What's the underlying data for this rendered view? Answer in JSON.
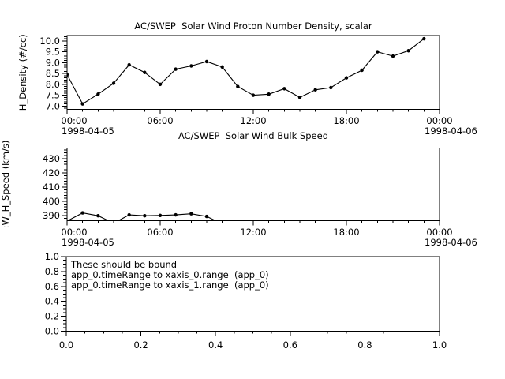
{
  "window": {
    "background": "#ffffff",
    "foreground": "#000000"
  },
  "chart_data": [
    {
      "type": "line",
      "title": "AC/SWEP  Solar Wind Proton Number Density, scalar",
      "ylabel": "H_Density (#/cc)",
      "xlabel": "",
      "x_unit": "hours since 1998-04-05 00:00",
      "xlim": [
        0,
        24
      ],
      "ylim": [
        6.85,
        10.25
      ],
      "x_major_ticks": [
        0,
        6,
        12,
        18,
        24
      ],
      "x_major_labels": [
        "00:00",
        "06:00",
        "12:00",
        "18:00",
        "00:00"
      ],
      "x_minor_step": 1,
      "y_major_ticks": [
        7.0,
        7.5,
        8.0,
        8.5,
        9.0,
        9.5,
        10.0
      ],
      "y_major_labels": [
        "7.0",
        "7.5",
        "8.0",
        "8.5",
        "9.0",
        "9.5",
        "10.0"
      ],
      "y_minor_step": 0.1,
      "date_left": "1998-04-05",
      "date_right": "1998-04-06",
      "grid": false,
      "legend": null,
      "series": [
        {
          "name": "H_Density",
          "marker": "dot",
          "x": [
            0,
            1,
            2,
            3,
            4,
            5,
            6,
            7,
            8,
            9,
            10,
            11,
            12,
            13,
            14,
            15,
            16,
            17,
            18,
            19,
            20,
            21,
            22,
            23
          ],
          "y": [
            8.45,
            7.1,
            7.55,
            8.05,
            8.9,
            8.55,
            8.0,
            8.7,
            8.85,
            9.05,
            8.8,
            7.9,
            7.5,
            7.55,
            7.8,
            7.4,
            7.75,
            7.85,
            8.3,
            8.65,
            9.5,
            9.3,
            9.55,
            10.1
          ]
        }
      ]
    },
    {
      "type": "line",
      "title": "AC/SWEP  Solar Wind Bulk Speed",
      "ylabel": ":W_H_Speed (km/s)",
      "xlabel": "",
      "x_unit": "hours since 1998-04-05 00:00",
      "xlim": [
        0,
        24
      ],
      "ylim": [
        386.3,
        437.4
      ],
      "x_major_ticks": [
        0,
        6,
        12,
        18,
        24
      ],
      "x_major_labels": [
        "00:00",
        "06:00",
        "12:00",
        "18:00",
        "00:00"
      ],
      "x_minor_step": 1,
      "y_major_ticks": [
        390,
        400,
        410,
        420,
        430
      ],
      "y_major_labels": [
        "390",
        "400",
        "410",
        "420",
        "430"
      ],
      "y_minor_step": 2,
      "date_left": "1998-04-05",
      "date_right": "1998-04-06",
      "grid": false,
      "legend": null,
      "series": [
        {
          "name": "W_H_Speed",
          "marker": "dot",
          "x": [
            0,
            1,
            2,
            3,
            4,
            5,
            6,
            7,
            8,
            9,
            10
          ],
          "y": [
            386.0,
            391.8,
            389.8,
            384.5,
            390.4,
            389.8,
            390.0,
            390.4,
            391.2,
            389.3,
            384.0
          ]
        }
      ]
    },
    {
      "type": "line",
      "title": "",
      "ylabel": "",
      "xlabel": "",
      "xlim": [
        0,
        1
      ],
      "ylim": [
        0,
        1
      ],
      "x_major_ticks": [
        0,
        0.2,
        0.4,
        0.6,
        0.8,
        1.0
      ],
      "x_major_labels": [
        "0.0",
        "0.2",
        "0.4",
        "0.6",
        "0.8",
        "1.0"
      ],
      "x_minor_step": 0.05,
      "y_major_ticks": [
        0,
        0.2,
        0.4,
        0.6,
        0.8,
        1.0
      ],
      "y_major_labels": [
        "0.0",
        "0.2",
        "0.4",
        "0.6",
        "0.8",
        "1.0"
      ],
      "y_minor_step": 0.05,
      "grid": false,
      "legend": null,
      "series": [],
      "annotation": [
        "These should be bound",
        "app_0.timeRange to xaxis_0.range  (app_0)",
        "app_0.timeRange to xaxis_1.range  (app_0)"
      ]
    }
  ]
}
